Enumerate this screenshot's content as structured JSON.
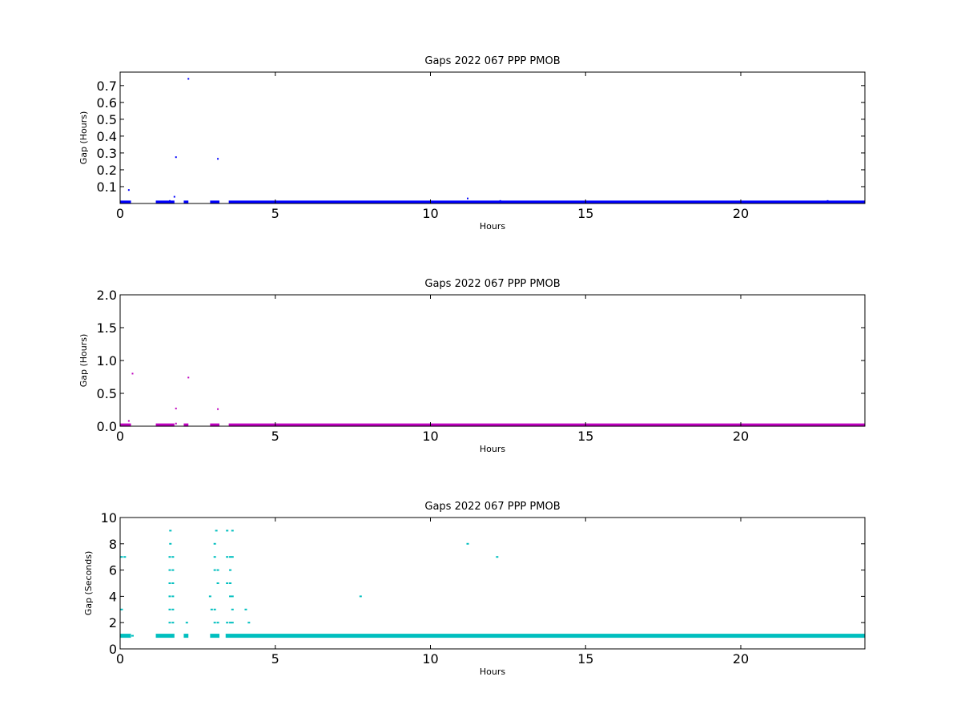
{
  "chart_data": [
    {
      "type": "scatter",
      "title": "Gaps 2022 067 PPP  PMOB",
      "xlabel": "Hours",
      "ylabel": "Gap (Hours)",
      "xlim": [
        0,
        24
      ],
      "ylim": [
        0,
        0.78
      ],
      "xticks": [
        "0",
        "5",
        "10",
        "15",
        "20"
      ],
      "xtick_values": [
        0,
        5,
        10,
        15,
        20
      ],
      "yticks": [
        "0.1",
        "0.2",
        "0.3",
        "0.4",
        "0.5",
        "0.6",
        "0.7"
      ],
      "ytick_values": [
        0.1,
        0.2,
        0.3,
        0.4,
        0.5,
        0.6,
        0.7
      ],
      "grid": false,
      "color": "#0000ff",
      "baseline_segments": [
        [
          0.0,
          0.35
        ],
        [
          1.15,
          1.75
        ],
        [
          2.05,
          2.2
        ],
        [
          2.9,
          3.2
        ],
        [
          3.5,
          24.0
        ]
      ],
      "baseline_value": 0.003,
      "points": [
        [
          0.28,
          0.08
        ],
        [
          1.6,
          0.015
        ],
        [
          1.75,
          0.04
        ],
        [
          1.8,
          0.275
        ],
        [
          2.2,
          0.74
        ],
        [
          3.15,
          0.265
        ],
        [
          11.2,
          0.03
        ],
        [
          12.25,
          0.015
        ],
        [
          22.8,
          0.015
        ]
      ]
    },
    {
      "type": "scatter",
      "title": "Gaps 2022 067 PPP  PMOB",
      "xlabel": "Hours",
      "ylabel": "Gap (Hours)",
      "xlim": [
        0,
        24
      ],
      "ylim": [
        0,
        2.0
      ],
      "xticks": [
        "0",
        "5",
        "10",
        "15",
        "20"
      ],
      "xtick_values": [
        0,
        5,
        10,
        15,
        20
      ],
      "yticks": [
        "0.0",
        "0.5",
        "1.0",
        "1.5",
        "2.0"
      ],
      "ytick_values": [
        0.0,
        0.5,
        1.0,
        1.5,
        2.0
      ],
      "grid": false,
      "color": "#bf00bf",
      "baseline_segments": [
        [
          0.0,
          0.35
        ],
        [
          1.15,
          1.75
        ],
        [
          2.05,
          2.2
        ],
        [
          2.9,
          3.2
        ],
        [
          3.5,
          24.0
        ]
      ],
      "baseline_value": 0.005,
      "points": [
        [
          0.28,
          0.08
        ],
        [
          0.4,
          0.8
        ],
        [
          1.8,
          0.27
        ],
        [
          1.8,
          0.04
        ],
        [
          2.2,
          0.74
        ],
        [
          3.15,
          0.26
        ],
        [
          11.2,
          0.02
        ]
      ]
    },
    {
      "type": "scatter",
      "title": "Gaps 2022 067 PPP  PMOB",
      "xlabel": "Hours",
      "ylabel": "Gap (Seconds)",
      "xlim": [
        0,
        24
      ],
      "ylim": [
        0,
        10
      ],
      "xticks": [
        "0",
        "5",
        "10",
        "15",
        "20"
      ],
      "xtick_values": [
        0,
        5,
        10,
        15,
        20
      ],
      "yticks": [
        "0",
        "2",
        "4",
        "6",
        "8",
        "10"
      ],
      "ytick_values": [
        0,
        2,
        4,
        6,
        8,
        10
      ],
      "grid": false,
      "color": "#00bfbf",
      "baseline_segments": [
        [
          0.0,
          0.35
        ],
        [
          1.15,
          1.75
        ],
        [
          2.05,
          2.2
        ],
        [
          2.9,
          3.2
        ],
        [
          3.4,
          24.0
        ]
      ],
      "baseline_value": 1,
      "points": [
        [
          0.05,
          3
        ],
        [
          0.05,
          7
        ],
        [
          0.15,
          7
        ],
        [
          0.4,
          1
        ],
        [
          1.6,
          2
        ],
        [
          1.6,
          3
        ],
        [
          1.6,
          4
        ],
        [
          1.6,
          5
        ],
        [
          1.6,
          6
        ],
        [
          1.6,
          7
        ],
        [
          1.62,
          9
        ],
        [
          1.62,
          8
        ],
        [
          1.7,
          2
        ],
        [
          1.7,
          3
        ],
        [
          1.7,
          4
        ],
        [
          1.7,
          5
        ],
        [
          1.7,
          6
        ],
        [
          1.7,
          7
        ],
        [
          2.15,
          2
        ],
        [
          2.9,
          4
        ],
        [
          2.95,
          3
        ],
        [
          3.05,
          2
        ],
        [
          3.05,
          3
        ],
        [
          3.05,
          6
        ],
        [
          3.05,
          7
        ],
        [
          3.05,
          8
        ],
        [
          3.1,
          9
        ],
        [
          3.15,
          2
        ],
        [
          3.15,
          5
        ],
        [
          3.15,
          6
        ],
        [
          3.45,
          9
        ],
        [
          3.45,
          7
        ],
        [
          3.45,
          5
        ],
        [
          3.45,
          2
        ],
        [
          3.55,
          2
        ],
        [
          3.55,
          4
        ],
        [
          3.55,
          5
        ],
        [
          3.55,
          6
        ],
        [
          3.55,
          7
        ],
        [
          3.62,
          9
        ],
        [
          3.62,
          7
        ],
        [
          3.62,
          4
        ],
        [
          3.62,
          3
        ],
        [
          3.62,
          2
        ],
        [
          4.05,
          3
        ],
        [
          4.15,
          2
        ],
        [
          7.75,
          4
        ],
        [
          11.2,
          8
        ],
        [
          12.15,
          7
        ]
      ]
    }
  ]
}
